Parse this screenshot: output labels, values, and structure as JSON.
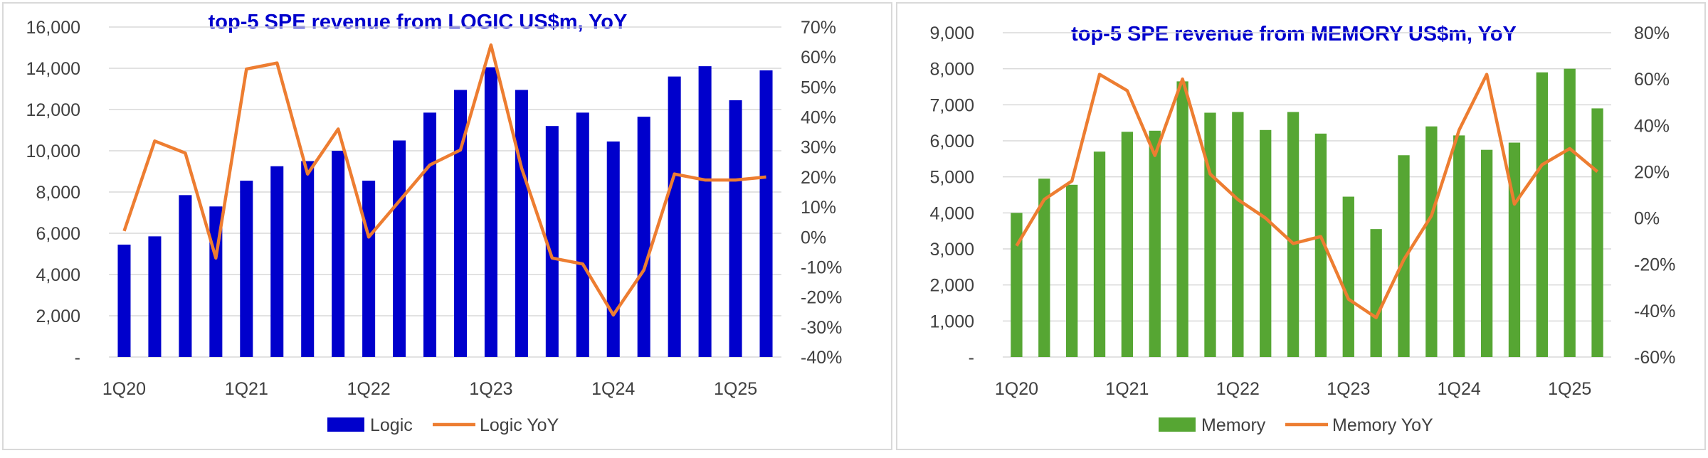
{
  "chart_data": [
    {
      "type": "bar",
      "title": "top-5 SPE revenue from LOGIC US$m, YoY",
      "categories": [
        "1Q20",
        "2Q20",
        "3Q20",
        "4Q20",
        "1Q21",
        "2Q21",
        "3Q21",
        "4Q21",
        "1Q22",
        "2Q22",
        "3Q22",
        "4Q22",
        "1Q23",
        "2Q23",
        "3Q23",
        "4Q23",
        "1Q24",
        "2Q24",
        "3Q24",
        "4Q24",
        "1Q25",
        "2Q25"
      ],
      "x_tick_labels": [
        "1Q20",
        "1Q21",
        "1Q22",
        "1Q23",
        "1Q24",
        "1Q25"
      ],
      "y_tick_labels": [
        "-",
        "2,000",
        "4,000",
        "6,000",
        "8,000",
        "10,000",
        "12,000",
        "14,000",
        "16,000"
      ],
      "y2_tick_labels": [
        "-40%",
        "-30%",
        "-20%",
        "-10%",
        "0%",
        "10%",
        "20%",
        "30%",
        "40%",
        "50%",
        "60%",
        "70%"
      ],
      "ylim": [
        0,
        16000
      ],
      "y2lim": [
        -40,
        70
      ],
      "series": [
        {
          "name": "Logic",
          "kind": "bar",
          "axis": "left",
          "color": "#0000cc",
          "values": [
            5450,
            5850,
            7850,
            7300,
            8550,
            9250,
            9500,
            10000,
            8550,
            10500,
            11850,
            12950,
            14050,
            12950,
            11200,
            11850,
            10450,
            11650,
            13600,
            14100,
            12450,
            13900
          ]
        },
        {
          "name": "Logic YoY",
          "kind": "line",
          "axis": "right",
          "color": "#ed7d31",
          "values": [
            2,
            32,
            28,
            -7,
            56,
            58,
            21,
            36,
            0,
            12,
            24,
            29,
            64,
            23,
            -7,
            -9,
            -26,
            -11,
            21,
            19,
            19,
            20
          ]
        }
      ],
      "legend": "bottom",
      "grid": true
    },
    {
      "type": "bar",
      "title": "top-5 SPE revenue from MEMORY US$m, YoY",
      "categories": [
        "1Q20",
        "2Q20",
        "3Q20",
        "4Q20",
        "1Q21",
        "2Q21",
        "3Q21",
        "4Q21",
        "1Q22",
        "2Q22",
        "3Q22",
        "4Q22",
        "1Q23",
        "2Q23",
        "3Q23",
        "4Q23",
        "1Q24",
        "2Q24",
        "3Q24",
        "4Q24",
        "1Q25",
        "2Q25"
      ],
      "x_tick_labels": [
        "1Q20",
        "1Q21",
        "1Q22",
        "1Q23",
        "1Q24",
        "1Q25"
      ],
      "y_tick_labels": [
        "-",
        "1,000",
        "2,000",
        "3,000",
        "4,000",
        "5,000",
        "6,000",
        "7,000",
        "8,000",
        "9,000"
      ],
      "y2_tick_labels": [
        "-60%",
        "-40%",
        "-20%",
        "0%",
        "20%",
        "40%",
        "60%",
        "80%"
      ],
      "ylim": [
        0,
        9000
      ],
      "y2lim": [
        -60,
        80
      ],
      "series": [
        {
          "name": "Memory",
          "kind": "bar",
          "axis": "left",
          "color": "#56a633",
          "values": [
            4000,
            4950,
            4780,
            5700,
            6250,
            6280,
            7650,
            6780,
            6800,
            6300,
            6800,
            6200,
            4450,
            3550,
            5600,
            6400,
            6150,
            5750,
            5950,
            7900,
            8000,
            6900
          ]
        },
        {
          "name": "Memory YoY",
          "kind": "line",
          "axis": "right",
          "color": "#ed7d31",
          "values": [
            -12,
            8,
            16,
            62,
            55,
            27,
            60,
            19,
            8,
            0,
            -11,
            -8,
            -35,
            -43,
            -18,
            1,
            38,
            62,
            6,
            23,
            30,
            20
          ]
        }
      ],
      "legend": "bottom",
      "grid": true
    }
  ]
}
